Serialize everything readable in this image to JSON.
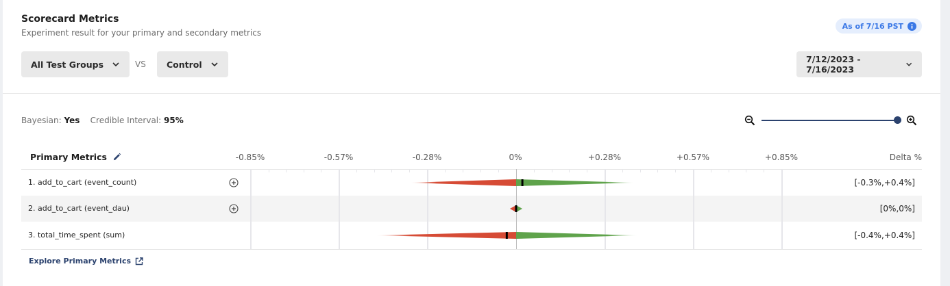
{
  "header": {
    "title": "Scorecard Metrics",
    "subtitle": "Experiment result for your primary and secondary metrics",
    "as_of_badge": "As of 7/16 PST",
    "test_group_dropdown": "All Test Groups",
    "vs_label": "VS",
    "control_dropdown": "Control",
    "date_range_dropdown": "7/12/2023 - 7/16/2023"
  },
  "settings": {
    "bayesian_label": "Bayesian:",
    "bayesian_value": "Yes",
    "credible_interval_label": "Credible Interval:",
    "credible_interval_value": "95%",
    "zoom_slider_value": 100
  },
  "table": {
    "section_label": "Primary Metrics",
    "delta_header": "Delta %",
    "axis_ticks": [
      "-0.85%",
      "-0.57%",
      "-0.28%",
      "0%",
      "+0.28%",
      "+0.57%",
      "+0.85%"
    ],
    "rows": [
      {
        "label": "1. add_to_cart (event_count)",
        "ci": "[-0.3%,+0.4%]",
        "has_add": true
      },
      {
        "label": "2. add_to_cart (event_dau)",
        "ci": "[0%,0%]",
        "has_add": true
      },
      {
        "label": "3. total_time_spent (sum)",
        "ci": "[-0.4%,+0.4%]",
        "has_add": false
      }
    ],
    "explore_link": "Explore Primary Metrics"
  },
  "colors": {
    "negative": "#d64b35",
    "positive": "#5fa34b",
    "accent": "#2b426e",
    "badge_text": "#3a78e6",
    "badge_bg": "#e5eefd"
  },
  "chart_data": {
    "type": "interval",
    "title": "Primary Metrics Delta %",
    "xlabel": "Delta %",
    "xlim": [
      -0.85,
      0.85
    ],
    "x_ticks": [
      -0.85,
      -0.57,
      -0.28,
      0,
      0.28,
      0.57,
      0.85
    ],
    "series": [
      {
        "name": "add_to_cart (event_count)",
        "point": 0.02,
        "lower": -0.34,
        "upper": 0.38,
        "label": "[-0.3%,+0.4%]"
      },
      {
        "name": "add_to_cart (event_dau)",
        "point": 0.0,
        "lower": -0.02,
        "upper": 0.02,
        "label": "[0%,0%]"
      },
      {
        "name": "total_time_spent (sum)",
        "point": -0.03,
        "lower": -0.45,
        "upper": 0.39,
        "label": "[-0.4%,+0.4%]"
      }
    ]
  }
}
